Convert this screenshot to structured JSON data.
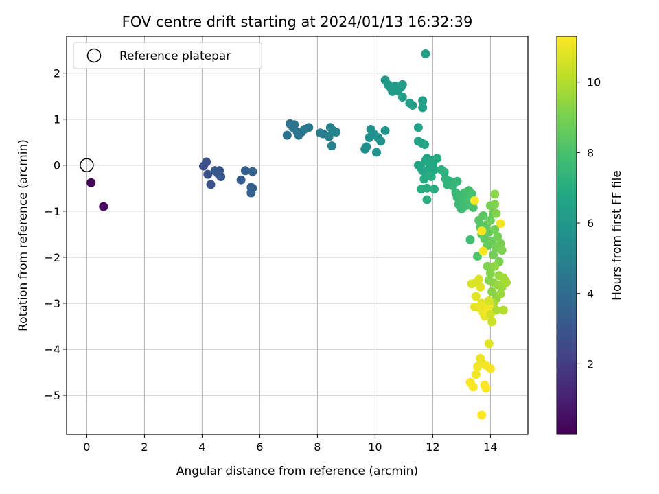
{
  "chart_data": {
    "type": "scatter",
    "title": "FOV centre drift starting at 2024/01/13 16:32:39",
    "xlabel": "Angular distance from reference (arcmin)",
    "ylabel": "Rotation from reference (arcmin)",
    "xlim": [
      -0.7,
      15.3
    ],
    "ylim": [
      -5.85,
      2.8
    ],
    "xticks": [
      0,
      2,
      4,
      6,
      8,
      10,
      12,
      14
    ],
    "yticks": [
      2,
      1,
      0,
      -1,
      -2,
      -3,
      -4,
      -5
    ],
    "xtick_labels": [
      "0",
      "2",
      "4",
      "6",
      "8",
      "10",
      "12",
      "14"
    ],
    "ytick_labels": [
      "2",
      "1",
      "0",
      "−1",
      "−2",
      "−3",
      "−4",
      "−5"
    ],
    "grid": true,
    "legend": {
      "position": "top-left",
      "label": "Reference platepar"
    },
    "reference_point": {
      "x": 0,
      "y": 0
    },
    "colorbar": {
      "label": "Hours from first FF file",
      "range": [
        0,
        11.3
      ],
      "ticks": [
        2,
        4,
        6,
        8,
        10
      ],
      "tick_labels": [
        "2",
        "4",
        "6",
        "8",
        "10"
      ],
      "colormap": "viridis"
    },
    "points": [
      {
        "x": 0.15,
        "y": -0.38,
        "t": 0.1
      },
      {
        "x": 0.58,
        "y": -0.9,
        "t": 0.3
      },
      {
        "x": 4.05,
        "y": -0.02,
        "t": 2.7
      },
      {
        "x": 4.15,
        "y": 0.07,
        "t": 2.8
      },
      {
        "x": 4.2,
        "y": -0.2,
        "t": 2.8
      },
      {
        "x": 4.3,
        "y": -0.42,
        "t": 2.9
      },
      {
        "x": 4.45,
        "y": -0.12,
        "t": 3.0
      },
      {
        "x": 4.55,
        "y": -0.18,
        "t": 3.0
      },
      {
        "x": 4.6,
        "y": -0.12,
        "t": 3.1
      },
      {
        "x": 4.65,
        "y": -0.25,
        "t": 3.1
      },
      {
        "x": 5.35,
        "y": -0.32,
        "t": 3.3
      },
      {
        "x": 5.5,
        "y": -0.12,
        "t": 3.4
      },
      {
        "x": 5.7,
        "y": -0.48,
        "t": 3.5
      },
      {
        "x": 5.75,
        "y": -0.5,
        "t": 3.5
      },
      {
        "x": 5.75,
        "y": -0.14,
        "t": 3.5
      },
      {
        "x": 5.7,
        "y": -0.6,
        "t": 3.5
      },
      {
        "x": 6.95,
        "y": 0.65,
        "t": 4.2
      },
      {
        "x": 7.05,
        "y": 0.9,
        "t": 4.2
      },
      {
        "x": 7.15,
        "y": 0.82,
        "t": 4.3
      },
      {
        "x": 7.2,
        "y": 0.88,
        "t": 4.3
      },
      {
        "x": 7.3,
        "y": 0.72,
        "t": 4.4
      },
      {
        "x": 7.35,
        "y": 0.65,
        "t": 4.4
      },
      {
        "x": 7.45,
        "y": 0.72,
        "t": 4.4
      },
      {
        "x": 7.55,
        "y": 0.78,
        "t": 4.5
      },
      {
        "x": 7.7,
        "y": 0.82,
        "t": 4.5
      },
      {
        "x": 8.1,
        "y": 0.7,
        "t": 4.8
      },
      {
        "x": 8.2,
        "y": 0.68,
        "t": 4.8
      },
      {
        "x": 8.4,
        "y": 0.62,
        "t": 4.9
      },
      {
        "x": 8.45,
        "y": 0.82,
        "t": 4.9
      },
      {
        "x": 8.5,
        "y": 0.42,
        "t": 5.0
      },
      {
        "x": 8.55,
        "y": 0.75,
        "t": 5.0
      },
      {
        "x": 8.65,
        "y": 0.72,
        "t": 5.0
      },
      {
        "x": 9.65,
        "y": 0.35,
        "t": 5.5
      },
      {
        "x": 9.7,
        "y": 0.4,
        "t": 5.5
      },
      {
        "x": 9.8,
        "y": 0.6,
        "t": 5.6
      },
      {
        "x": 9.85,
        "y": 0.78,
        "t": 5.6
      },
      {
        "x": 9.95,
        "y": 0.68,
        "t": 5.6
      },
      {
        "x": 10.05,
        "y": 0.28,
        "t": 5.7
      },
      {
        "x": 10.1,
        "y": 0.6,
        "t": 5.7
      },
      {
        "x": 10.2,
        "y": 0.52,
        "t": 5.7
      },
      {
        "x": 10.35,
        "y": 0.75,
        "t": 5.8
      },
      {
        "x": 10.35,
        "y": 1.85,
        "t": 6.0
      },
      {
        "x": 10.45,
        "y": 1.75,
        "t": 6.0
      },
      {
        "x": 10.55,
        "y": 1.68,
        "t": 6.0
      },
      {
        "x": 10.6,
        "y": 1.6,
        "t": 6.1
      },
      {
        "x": 10.7,
        "y": 1.72,
        "t": 6.1
      },
      {
        "x": 10.8,
        "y": 1.62,
        "t": 6.1
      },
      {
        "x": 10.9,
        "y": 1.7,
        "t": 6.2
      },
      {
        "x": 10.95,
        "y": 1.48,
        "t": 6.2
      },
      {
        "x": 10.95,
        "y": 1.75,
        "t": 6.2
      },
      {
        "x": 11.2,
        "y": 1.35,
        "t": 6.3
      },
      {
        "x": 11.3,
        "y": 1.3,
        "t": 6.3
      },
      {
        "x": 11.75,
        "y": 2.42,
        "t": 6.4
      },
      {
        "x": 11.65,
        "y": 1.4,
        "t": 6.4
      },
      {
        "x": 11.65,
        "y": 1.25,
        "t": 6.4
      },
      {
        "x": 11.5,
        "y": 0.82,
        "t": 6.5
      },
      {
        "x": 11.5,
        "y": 0.52,
        "t": 6.5
      },
      {
        "x": 11.62,
        "y": 0.48,
        "t": 6.5
      },
      {
        "x": 11.72,
        "y": 0.45,
        "t": 6.6
      },
      {
        "x": 11.5,
        "y": 0.0,
        "t": 6.6
      },
      {
        "x": 11.58,
        "y": -0.05,
        "t": 6.6
      },
      {
        "x": 11.65,
        "y": -0.12,
        "t": 6.7
      },
      {
        "x": 11.75,
        "y": 0.1,
        "t": 6.7
      },
      {
        "x": 11.8,
        "y": 0.15,
        "t": 6.7
      },
      {
        "x": 11.85,
        "y": 0.05,
        "t": 6.7
      },
      {
        "x": 11.9,
        "y": -0.05,
        "t": 6.8
      },
      {
        "x": 11.95,
        "y": 0.1,
        "t": 6.8
      },
      {
        "x": 12.0,
        "y": 0.02,
        "t": 6.8
      },
      {
        "x": 12.05,
        "y": -0.1,
        "t": 6.8
      },
      {
        "x": 12.15,
        "y": 0.15,
        "t": 6.9
      },
      {
        "x": 11.7,
        "y": -0.3,
        "t": 6.9
      },
      {
        "x": 11.8,
        "y": -0.22,
        "t": 6.9
      },
      {
        "x": 11.95,
        "y": -0.25,
        "t": 7.0
      },
      {
        "x": 11.6,
        "y": -0.52,
        "t": 7.0
      },
      {
        "x": 11.8,
        "y": -0.5,
        "t": 7.0
      },
      {
        "x": 12.05,
        "y": -0.52,
        "t": 7.0
      },
      {
        "x": 11.8,
        "y": -0.75,
        "t": 7.1
      },
      {
        "x": 12.3,
        "y": -0.1,
        "t": 7.1
      },
      {
        "x": 12.4,
        "y": -0.15,
        "t": 7.2
      },
      {
        "x": 12.45,
        "y": -0.3,
        "t": 7.2
      },
      {
        "x": 12.5,
        "y": -0.42,
        "t": 7.3
      },
      {
        "x": 12.6,
        "y": -0.35,
        "t": 7.3
      },
      {
        "x": 12.7,
        "y": -0.45,
        "t": 7.4
      },
      {
        "x": 12.85,
        "y": -0.35,
        "t": 7.4
      },
      {
        "x": 12.8,
        "y": -0.6,
        "t": 7.5
      },
      {
        "x": 12.85,
        "y": -0.7,
        "t": 7.5
      },
      {
        "x": 12.9,
        "y": -0.85,
        "t": 7.6
      },
      {
        "x": 12.95,
        "y": -0.65,
        "t": 7.6
      },
      {
        "x": 13.0,
        "y": -0.95,
        "t": 7.7
      },
      {
        "x": 13.05,
        "y": -0.72,
        "t": 7.7
      },
      {
        "x": 13.1,
        "y": -0.6,
        "t": 7.8
      },
      {
        "x": 13.15,
        "y": -0.88,
        "t": 7.8
      },
      {
        "x": 13.2,
        "y": -0.75,
        "t": 7.9
      },
      {
        "x": 13.25,
        "y": -0.55,
        "t": 7.9
      },
      {
        "x": 13.3,
        "y": -0.8,
        "t": 8.0
      },
      {
        "x": 13.35,
        "y": -0.62,
        "t": 8.0
      },
      {
        "x": 13.4,
        "y": -0.92,
        "t": 8.0
      },
      {
        "x": 13.3,
        "y": -1.62,
        "t": 7.8
      },
      {
        "x": 13.55,
        "y": -1.98,
        "t": 8.1
      },
      {
        "x": 13.6,
        "y": -1.2,
        "t": 8.3
      },
      {
        "x": 13.65,
        "y": -1.35,
        "t": 8.3
      },
      {
        "x": 13.7,
        "y": -1.5,
        "t": 8.4
      },
      {
        "x": 13.75,
        "y": -1.1,
        "t": 8.4
      },
      {
        "x": 13.8,
        "y": -1.6,
        "t": 8.5
      },
      {
        "x": 13.85,
        "y": -1.3,
        "t": 8.5
      },
      {
        "x": 13.9,
        "y": -1.75,
        "t": 8.6
      },
      {
        "x": 13.95,
        "y": -1.45,
        "t": 8.6
      },
      {
        "x": 14.0,
        "y": -1.2,
        "t": 8.7
      },
      {
        "x": 14.05,
        "y": -1.65,
        "t": 8.7
      },
      {
        "x": 14.1,
        "y": -1.95,
        "t": 8.8
      },
      {
        "x": 14.15,
        "y": -1.4,
        "t": 8.8
      },
      {
        "x": 14.2,
        "y": -1.8,
        "t": 8.9
      },
      {
        "x": 14.25,
        "y": -1.55,
        "t": 8.9
      },
      {
        "x": 14.3,
        "y": -2.1,
        "t": 9.0
      },
      {
        "x": 14.35,
        "y": -1.7,
        "t": 9.0
      },
      {
        "x": 14.4,
        "y": -1.85,
        "t": 9.1
      },
      {
        "x": 14.1,
        "y": -1.05,
        "t": 8.6
      },
      {
        "x": 14.0,
        "y": -0.88,
        "t": 9.0
      },
      {
        "x": 14.15,
        "y": -0.85,
        "t": 9.1
      },
      {
        "x": 14.15,
        "y": -0.63,
        "t": 9.3
      },
      {
        "x": 14.2,
        "y": -1.05,
        "t": 9.2
      },
      {
        "x": 13.9,
        "y": -2.2,
        "t": 9.1
      },
      {
        "x": 13.95,
        "y": -2.5,
        "t": 9.2
      },
      {
        "x": 14.0,
        "y": -2.35,
        "t": 9.2
      },
      {
        "x": 14.05,
        "y": -2.75,
        "t": 9.3
      },
      {
        "x": 14.1,
        "y": -2.55,
        "t": 9.3
      },
      {
        "x": 14.15,
        "y": -2.2,
        "t": 9.4
      },
      {
        "x": 14.2,
        "y": -2.9,
        "t": 9.4
      },
      {
        "x": 14.25,
        "y": -2.6,
        "t": 9.5
      },
      {
        "x": 14.3,
        "y": -2.4,
        "t": 9.5
      },
      {
        "x": 14.35,
        "y": -2.8,
        "t": 9.6
      },
      {
        "x": 14.4,
        "y": -2.65,
        "t": 9.6
      },
      {
        "x": 14.45,
        "y": -2.45,
        "t": 9.7
      },
      {
        "x": 14.5,
        "y": -2.5,
        "t": 9.7
      },
      {
        "x": 14.55,
        "y": -2.55,
        "t": 9.8
      },
      {
        "x": 14.1,
        "y": -3.0,
        "t": 9.8
      },
      {
        "x": 14.2,
        "y": -3.15,
        "t": 9.9
      },
      {
        "x": 14.45,
        "y": -3.15,
        "t": 10.0
      },
      {
        "x": 13.45,
        "y": -0.77,
        "t": 11.2
      },
      {
        "x": 14.35,
        "y": -1.27,
        "t": 11.1
      },
      {
        "x": 13.7,
        "y": -1.43,
        "t": 11.2
      },
      {
        "x": 13.75,
        "y": -1.87,
        "t": 11.1
      },
      {
        "x": 13.35,
        "y": -2.58,
        "t": 10.6
      },
      {
        "x": 13.5,
        "y": -2.55,
        "t": 10.7
      },
      {
        "x": 13.6,
        "y": -2.48,
        "t": 10.7
      },
      {
        "x": 13.65,
        "y": -2.65,
        "t": 10.8
      },
      {
        "x": 13.5,
        "y": -2.85,
        "t": 10.8
      },
      {
        "x": 13.45,
        "y": -3.08,
        "t": 10.9
      },
      {
        "x": 13.6,
        "y": -3.1,
        "t": 10.9
      },
      {
        "x": 13.7,
        "y": -3.0,
        "t": 10.9
      },
      {
        "x": 13.75,
        "y": -3.2,
        "t": 11.0
      },
      {
        "x": 13.8,
        "y": -3.28,
        "t": 11.0
      },
      {
        "x": 13.85,
        "y": -3.1,
        "t": 11.0
      },
      {
        "x": 13.9,
        "y": -3.2,
        "t": 11.1
      },
      {
        "x": 13.95,
        "y": -3.05,
        "t": 11.1
      },
      {
        "x": 14.0,
        "y": -3.25,
        "t": 10.5
      },
      {
        "x": 14.05,
        "y": -3.4,
        "t": 10.4
      },
      {
        "x": 13.95,
        "y": -2.95,
        "t": 10.6
      },
      {
        "x": 13.95,
        "y": -3.88,
        "t": 10.8
      },
      {
        "x": 13.65,
        "y": -4.2,
        "t": 11.0
      },
      {
        "x": 13.7,
        "y": -4.3,
        "t": 11.0
      },
      {
        "x": 13.55,
        "y": -4.38,
        "t": 11.1
      },
      {
        "x": 13.5,
        "y": -4.55,
        "t": 11.1
      },
      {
        "x": 13.85,
        "y": -4.35,
        "t": 11.1
      },
      {
        "x": 14.0,
        "y": -4.42,
        "t": 11.2
      },
      {
        "x": 13.3,
        "y": -4.72,
        "t": 11.2
      },
      {
        "x": 13.4,
        "y": -4.82,
        "t": 11.2
      },
      {
        "x": 13.8,
        "y": -4.78,
        "t": 11.3
      },
      {
        "x": 13.85,
        "y": -4.85,
        "t": 11.3
      },
      {
        "x": 13.7,
        "y": -5.43,
        "t": 11.3
      }
    ]
  }
}
